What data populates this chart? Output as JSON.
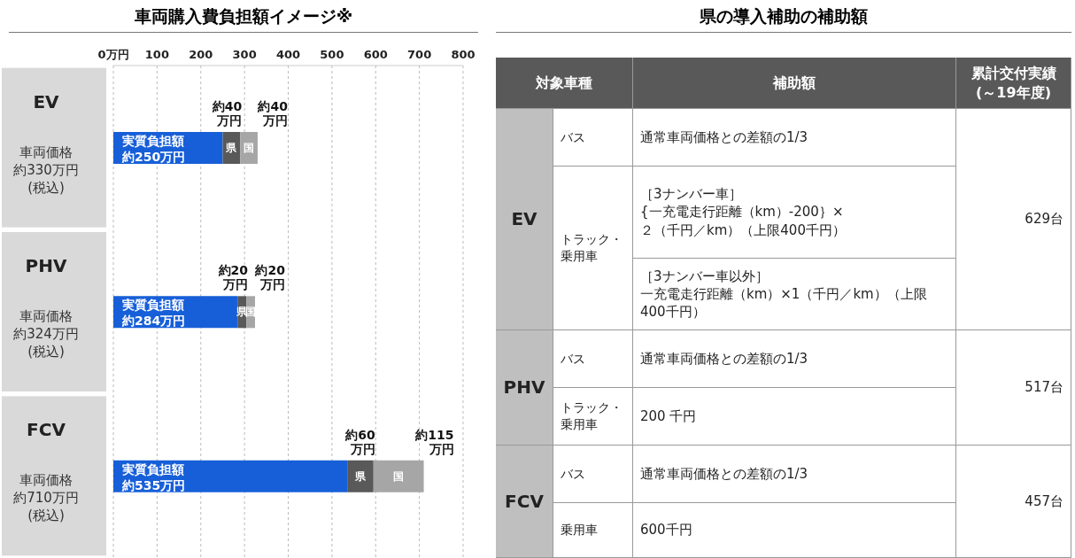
{
  "chart_data": [
    {
      "type": "bar",
      "orientation": "horizontal",
      "stacked": true,
      "title": "車両購入費負担額イメージ※",
      "categories": [
        "EV",
        "PHV",
        "FCV"
      ],
      "annotations": [
        "車両価格",
        "約330万円",
        "(税込)",
        "約40万円",
        "約40万円",
        "車両価格",
        "約324万円",
        "(税込)",
        "約20万円",
        "約20万円",
        "車両価格",
        "約710万円",
        "(税込)",
        "約60万円",
        "約115万円"
      ],
      "series": [
        {
          "name": "実質負担額",
          "color": "#175fd8",
          "values": [
            250,
            284,
            535
          ],
          "value_labels": [
            "約250万円",
            "約284万円",
            "約535万円"
          ]
        },
        {
          "name": "県",
          "color": "#595959",
          "values": [
            40,
            20,
            60
          ]
        },
        {
          "name": "国",
          "color": "#a6a6a6",
          "values": [
            40,
            20,
            115
          ]
        }
      ],
      "xlim": [
        0,
        800
      ],
      "xticks": [
        {
          "value": 0,
          "label": "0万円"
        },
        100,
        200,
        300,
        400,
        500,
        600,
        700,
        800
      ],
      "grid": "x"
    },
    {
      "type": "other",
      "title": "県の導入補助の補助額",
      "annotations": [
        "対象車種",
        "補助額",
        "累計交付実績\n(～19年度)",
        "EV",
        "バス",
        "通常車両価格との差額の1/3",
        "トラック・乗用車",
        "［3ナンバー車］\n{一充電走行距離（km）-200｝×\n２（千円／km）（上限400千円）",
        "［3ナンバー車以外］",
        "一充電走行距離（km）×1（千円／km）（上限400千円）",
        "629台",
        "PHV",
        "バス",
        "通常車両価格との差額の1/3",
        "トラック・乗用車",
        "200 千円",
        "517台",
        "FCV",
        "バス",
        "通常車両価格との差額の1/3",
        "乗用車",
        "600千円",
        "457台"
      ]
    }
  ]
}
